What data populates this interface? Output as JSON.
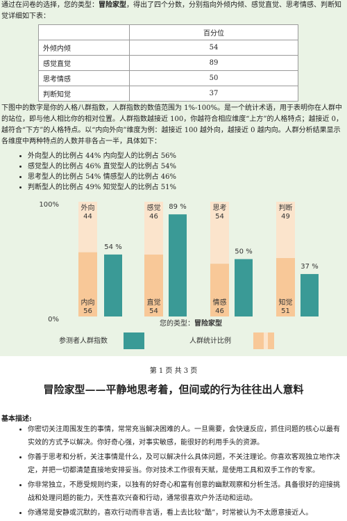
{
  "intro": [
    "通过在问卷的选择，您的类型：",
    "冒险家型",
    "，得出了四个分数，分别指向外倾内倾、感觉直觉、思考情感、判断知觉详细如下表："
  ],
  "table": {
    "header": "百分位",
    "rows": [
      [
        "外倾内倾",
        54
      ],
      [
        "感觉直觉",
        89
      ],
      [
        "思考情感",
        50
      ],
      [
        "判断知觉",
        37
      ]
    ]
  },
  "paragraph": "下图中的数字是你的人格八群指数，人群指数的数值范围为 1%-100%。是一个统计术语，用于表明你在人群中的站位，即与他人相比你的相对位置。人群指数越接近 100，你越符合相应维度“上方”的人格特点；越接近 0，越符合“下方”的人格特点。以“内向外向”维度为例：越接近 100 越外向，越接近 0 越内向。人群分析结果显示各维度中两种特点的人数并非各占一半，具体如下：",
  "bullets": [
    "外向型人的比例占 44%  内向型人的比例占 56%",
    "感觉型人的比例占 46%  直觉型人的比例占 54%",
    "思考型人的比例占 54%  情感型人的比例占 46%",
    "判断型人的比例占 49%  知觉型人的比例占 51%"
  ],
  "chart_data": {
    "type": "bar",
    "ylim": [
      0,
      100
    ],
    "yticks": [
      {
        "value": 100,
        "label": "100%"
      },
      {
        "value": 0,
        "label": "0%"
      }
    ],
    "xlabel": [
      "您的类型：",
      "冒险家型"
    ],
    "series": [
      {
        "name": "参测者人群指数",
        "color": "#3a9a96",
        "values": [
          54,
          89,
          50,
          37
        ],
        "value_labels": [
          "54 %",
          "89 %",
          "50 %",
          "37 %"
        ]
      }
    ],
    "population": {
      "name": "人群统计比例",
      "upper": {
        "color": "#fbe4cc",
        "labels": [
          "外向",
          "感觉",
          "思考",
          "判断"
        ],
        "values": [
          44,
          46,
          54,
          49
        ]
      },
      "lower": {
        "color": "#f8c898",
        "labels": [
          "内向",
          "直觉",
          "情感",
          "知觉"
        ],
        "values": [
          56,
          54,
          46,
          51
        ]
      }
    }
  },
  "page_footer": "第 1 页  共 3 页",
  "heading": "冒险家型——平静地思考着，但间或的行为往往出人意料",
  "section": {
    "title": "基本描述:",
    "items": [
      "你密切关注周围发生的事情，常常充当解决困难的人。一旦需要，会快速反应，抓住问题的核心以最有实效的方式予以解决。你好奇心强，对事实敏感，能很好的利用手头的资源。",
      "你善于思考和分析，关注事情是什么，及可以解决什么具体问题，不关注理论。你喜欢客观独立地作决定，并把一切都清楚直接地安排妥当。你对技术工作很有天赋，是使用工具和双手工作的专家。",
      "你非常独立，不愿受规则约束，以独有的好奇心和富有创意的幽默观察和分析生活。具备很好的迎接挑战和处理问题的能力，天性喜欢兴奋和行动，通常很喜欢户外活动和运动。",
      "你通常是安静或沉默的，喜欢行动而非言语，看上去比较“酷”，时常被认为不太愿意接近人。"
    ]
  }
}
